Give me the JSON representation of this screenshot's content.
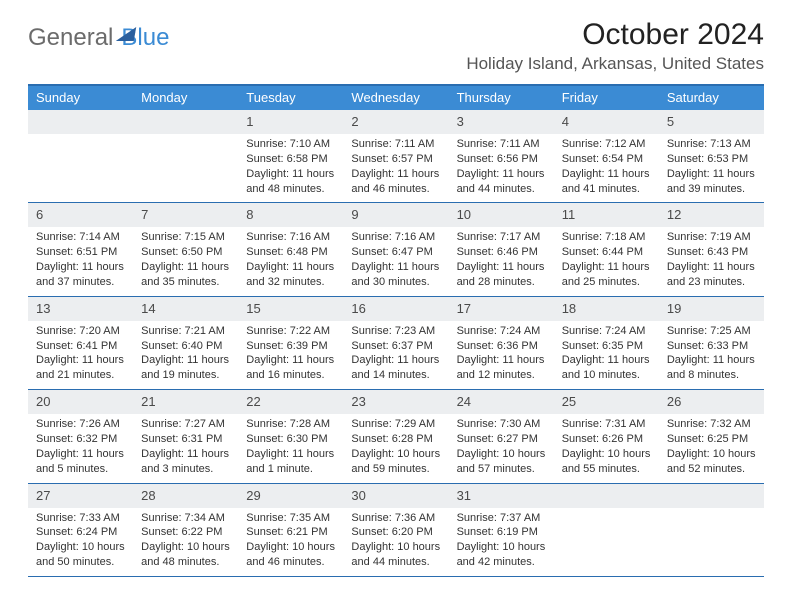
{
  "logo": {
    "part1": "General",
    "part2": "Blue"
  },
  "title": "October 2024",
  "location": "Holiday Island, Arkansas, United States",
  "colors": {
    "header_bar": "#3b8bd4",
    "rule": "#2a6db0",
    "daynum_bg": "#eceef0",
    "text": "#333333",
    "logo_gray": "#6b6b6b",
    "logo_blue": "#3b8bd4"
  },
  "dow": [
    "Sunday",
    "Monday",
    "Tuesday",
    "Wednesday",
    "Thursday",
    "Friday",
    "Saturday"
  ],
  "weeks": [
    [
      {
        "n": "",
        "sr": "",
        "ss": "",
        "dl": ""
      },
      {
        "n": "",
        "sr": "",
        "ss": "",
        "dl": ""
      },
      {
        "n": "1",
        "sr": "Sunrise: 7:10 AM",
        "ss": "Sunset: 6:58 PM",
        "dl": "Daylight: 11 hours and 48 minutes."
      },
      {
        "n": "2",
        "sr": "Sunrise: 7:11 AM",
        "ss": "Sunset: 6:57 PM",
        "dl": "Daylight: 11 hours and 46 minutes."
      },
      {
        "n": "3",
        "sr": "Sunrise: 7:11 AM",
        "ss": "Sunset: 6:56 PM",
        "dl": "Daylight: 11 hours and 44 minutes."
      },
      {
        "n": "4",
        "sr": "Sunrise: 7:12 AM",
        "ss": "Sunset: 6:54 PM",
        "dl": "Daylight: 11 hours and 41 minutes."
      },
      {
        "n": "5",
        "sr": "Sunrise: 7:13 AM",
        "ss": "Sunset: 6:53 PM",
        "dl": "Daylight: 11 hours and 39 minutes."
      }
    ],
    [
      {
        "n": "6",
        "sr": "Sunrise: 7:14 AM",
        "ss": "Sunset: 6:51 PM",
        "dl": "Daylight: 11 hours and 37 minutes."
      },
      {
        "n": "7",
        "sr": "Sunrise: 7:15 AM",
        "ss": "Sunset: 6:50 PM",
        "dl": "Daylight: 11 hours and 35 minutes."
      },
      {
        "n": "8",
        "sr": "Sunrise: 7:16 AM",
        "ss": "Sunset: 6:48 PM",
        "dl": "Daylight: 11 hours and 32 minutes."
      },
      {
        "n": "9",
        "sr": "Sunrise: 7:16 AM",
        "ss": "Sunset: 6:47 PM",
        "dl": "Daylight: 11 hours and 30 minutes."
      },
      {
        "n": "10",
        "sr": "Sunrise: 7:17 AM",
        "ss": "Sunset: 6:46 PM",
        "dl": "Daylight: 11 hours and 28 minutes."
      },
      {
        "n": "11",
        "sr": "Sunrise: 7:18 AM",
        "ss": "Sunset: 6:44 PM",
        "dl": "Daylight: 11 hours and 25 minutes."
      },
      {
        "n": "12",
        "sr": "Sunrise: 7:19 AM",
        "ss": "Sunset: 6:43 PM",
        "dl": "Daylight: 11 hours and 23 minutes."
      }
    ],
    [
      {
        "n": "13",
        "sr": "Sunrise: 7:20 AM",
        "ss": "Sunset: 6:41 PM",
        "dl": "Daylight: 11 hours and 21 minutes."
      },
      {
        "n": "14",
        "sr": "Sunrise: 7:21 AM",
        "ss": "Sunset: 6:40 PM",
        "dl": "Daylight: 11 hours and 19 minutes."
      },
      {
        "n": "15",
        "sr": "Sunrise: 7:22 AM",
        "ss": "Sunset: 6:39 PM",
        "dl": "Daylight: 11 hours and 16 minutes."
      },
      {
        "n": "16",
        "sr": "Sunrise: 7:23 AM",
        "ss": "Sunset: 6:37 PM",
        "dl": "Daylight: 11 hours and 14 minutes."
      },
      {
        "n": "17",
        "sr": "Sunrise: 7:24 AM",
        "ss": "Sunset: 6:36 PM",
        "dl": "Daylight: 11 hours and 12 minutes."
      },
      {
        "n": "18",
        "sr": "Sunrise: 7:24 AM",
        "ss": "Sunset: 6:35 PM",
        "dl": "Daylight: 11 hours and 10 minutes."
      },
      {
        "n": "19",
        "sr": "Sunrise: 7:25 AM",
        "ss": "Sunset: 6:33 PM",
        "dl": "Daylight: 11 hours and 8 minutes."
      }
    ],
    [
      {
        "n": "20",
        "sr": "Sunrise: 7:26 AM",
        "ss": "Sunset: 6:32 PM",
        "dl": "Daylight: 11 hours and 5 minutes."
      },
      {
        "n": "21",
        "sr": "Sunrise: 7:27 AM",
        "ss": "Sunset: 6:31 PM",
        "dl": "Daylight: 11 hours and 3 minutes."
      },
      {
        "n": "22",
        "sr": "Sunrise: 7:28 AM",
        "ss": "Sunset: 6:30 PM",
        "dl": "Daylight: 11 hours and 1 minute."
      },
      {
        "n": "23",
        "sr": "Sunrise: 7:29 AM",
        "ss": "Sunset: 6:28 PM",
        "dl": "Daylight: 10 hours and 59 minutes."
      },
      {
        "n": "24",
        "sr": "Sunrise: 7:30 AM",
        "ss": "Sunset: 6:27 PM",
        "dl": "Daylight: 10 hours and 57 minutes."
      },
      {
        "n": "25",
        "sr": "Sunrise: 7:31 AM",
        "ss": "Sunset: 6:26 PM",
        "dl": "Daylight: 10 hours and 55 minutes."
      },
      {
        "n": "26",
        "sr": "Sunrise: 7:32 AM",
        "ss": "Sunset: 6:25 PM",
        "dl": "Daylight: 10 hours and 52 minutes."
      }
    ],
    [
      {
        "n": "27",
        "sr": "Sunrise: 7:33 AM",
        "ss": "Sunset: 6:24 PM",
        "dl": "Daylight: 10 hours and 50 minutes."
      },
      {
        "n": "28",
        "sr": "Sunrise: 7:34 AM",
        "ss": "Sunset: 6:22 PM",
        "dl": "Daylight: 10 hours and 48 minutes."
      },
      {
        "n": "29",
        "sr": "Sunrise: 7:35 AM",
        "ss": "Sunset: 6:21 PM",
        "dl": "Daylight: 10 hours and 46 minutes."
      },
      {
        "n": "30",
        "sr": "Sunrise: 7:36 AM",
        "ss": "Sunset: 6:20 PM",
        "dl": "Daylight: 10 hours and 44 minutes."
      },
      {
        "n": "31",
        "sr": "Sunrise: 7:37 AM",
        "ss": "Sunset: 6:19 PM",
        "dl": "Daylight: 10 hours and 42 minutes."
      },
      {
        "n": "",
        "sr": "",
        "ss": "",
        "dl": ""
      },
      {
        "n": "",
        "sr": "",
        "ss": "",
        "dl": ""
      }
    ]
  ]
}
